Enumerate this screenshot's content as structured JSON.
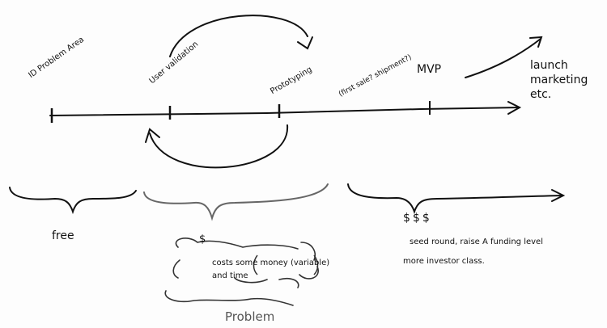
{
  "timeline": {
    "stages": [
      {
        "id": "problem-area",
        "text": "ID Problem Area"
      },
      {
        "id": "user-validation",
        "text": "User validation"
      },
      {
        "id": "prototyping",
        "text": "Prototyping"
      },
      {
        "id": "first-sale",
        "text": "(first sale? shipment?)"
      },
      {
        "id": "mvp",
        "text": "MVP"
      },
      {
        "id": "launch",
        "line1": "launch",
        "line2": "marketing",
        "line3": "etc."
      }
    ]
  },
  "phases": {
    "free": {
      "label": "free"
    },
    "problem": {
      "symbol": "$",
      "line1": "costs some money (variable)",
      "line2": "and time",
      "caption": "Problem"
    },
    "funding": {
      "symbol": "$$$",
      "line1": "seed round, raise A funding level",
      "line2": "more investor class."
    }
  },
  "colors": {
    "ink": "#111111",
    "gray_ink": "#555555",
    "paper": "#fdfdfd"
  }
}
